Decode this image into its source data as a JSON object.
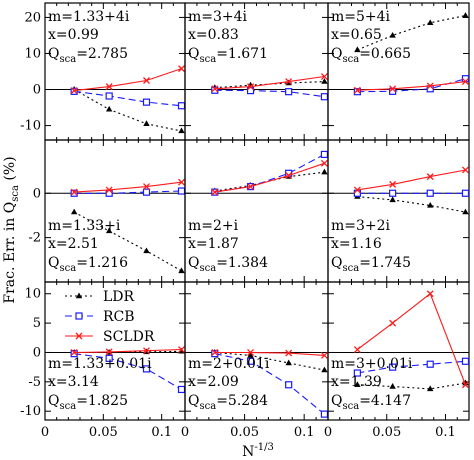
{
  "chart_data": {
    "type": "line",
    "ylabel": "Frac. Err. in Q",
    "ylabel_sub": "sca",
    "ylabel_unit": "(%)",
    "xlabel": "N",
    "xlabel_sup": "-1/3",
    "xlim": [
      0,
      0.12
    ],
    "x_ticks": [
      "0",
      "0.05",
      "0.1"
    ],
    "x_tick_values": [
      0,
      0.05,
      0.1
    ],
    "x": [
      0.025,
      0.055,
      0.087,
      0.117
    ],
    "legend": {
      "placement": "top-left of bottom-left panel",
      "entries": [
        {
          "label": "LDR",
          "color": "#000000",
          "dash": "2,3",
          "marker": "triangle"
        },
        {
          "label": "RCB",
          "color": "#1a1aff",
          "dash": "7,4",
          "marker": "square"
        },
        {
          "label": "SCLDR",
          "color": "#ff1a1a",
          "dash": "",
          "marker": "cross"
        }
      ]
    },
    "rows": [
      {
        "ylim": [
          -14,
          24
        ],
        "yticks": [
          -10,
          0,
          10,
          20
        ]
      },
      {
        "ylim": [
          -4,
          2.4
        ],
        "yticks": [
          -2,
          0
        ]
      },
      {
        "ylim": [
          -11.5,
          12
        ],
        "yticks": [
          -10,
          -5,
          0,
          5,
          10
        ]
      }
    ],
    "panels": [
      {
        "m": "m=1.33+4i",
        "x": "x=0.99",
        "q_prefix": "Q",
        "q_sub": "sca",
        "q_value": "=2.785",
        "series": {
          "LDR": [
            0,
            -5.5,
            -9.5,
            -11.5
          ],
          "RCB": [
            -0.5,
            -1.8,
            -3.5,
            -4.5
          ],
          "SCLDR": [
            -0.3,
            0.8,
            2.5,
            5.8
          ]
        }
      },
      {
        "m": "m=3+4i",
        "x": "x=0.83",
        "q_prefix": "Q",
        "q_sub": "sca",
        "q_value": "=1.671",
        "series": {
          "LDR": [
            0.5,
            1.2,
            1.8,
            2.2
          ],
          "RCB": [
            -0.2,
            -0.3,
            -0.6,
            -2.0
          ],
          "SCLDR": [
            0.2,
            0.8,
            2.2,
            3.6
          ]
        }
      },
      {
        "m": "m=5+4i",
        "x": "x=0.65",
        "q_prefix": "Q",
        "q_sub": "sca",
        "q_value": "=0.665",
        "series": {
          "LDR": [
            11,
            15,
            18.5,
            20.5
          ],
          "RCB": [
            -0.6,
            -0.5,
            0.2,
            3.0
          ],
          "SCLDR": [
            -0.2,
            0.2,
            1.0,
            2.2
          ]
        }
      },
      {
        "m": "m=1.33+i",
        "x": "x=2.51",
        "q_prefix": "Q",
        "q_sub": "sca",
        "q_value": "=1.216",
        "series": {
          "LDR": [
            -0.85,
            -1.7,
            -2.6,
            -3.5
          ],
          "RCB": [
            0,
            0,
            0.05,
            0.1
          ],
          "SCLDR": [
            0.05,
            0.15,
            0.3,
            0.5
          ]
        }
      },
      {
        "m": "m=2+i",
        "x": "x=1.87",
        "q_prefix": "Q",
        "q_sub": "sca",
        "q_value": "=1.384",
        "series": {
          "LDR": [
            0.1,
            0.35,
            0.75,
            0.95
          ],
          "RCB": [
            0.05,
            0.3,
            0.9,
            1.75
          ],
          "SCLDR": [
            0.05,
            0.3,
            0.8,
            1.35
          ]
        }
      },
      {
        "m": "m=3+2i",
        "x": "x=1.16",
        "q_prefix": "Q",
        "q_sub": "sca",
        "q_value": "=1.745",
        "series": {
          "LDR": [
            -0.15,
            -0.3,
            -0.55,
            -0.85
          ],
          "RCB": [
            0,
            0,
            0,
            0
          ],
          "SCLDR": [
            0.15,
            0.4,
            0.75,
            1.05
          ]
        }
      },
      {
        "m": "m=1.33+0.01i",
        "x": "x=3.14",
        "q_prefix": "Q",
        "q_sub": "sca",
        "q_value": "=1.825",
        "series": {
          "LDR": [
            0,
            0,
            0.1,
            0.2
          ],
          "RCB": [
            -0.2,
            -1.0,
            -2.8,
            -6.3
          ],
          "SCLDR": [
            0,
            0.1,
            0.3,
            0.5
          ]
        }
      },
      {
        "m": "m=2+0.01i",
        "x": "x=2.09",
        "q_prefix": "Q",
        "q_sub": "sca",
        "q_value": "=5.284",
        "series": {
          "LDR": [
            0,
            -0.5,
            -1.8,
            -3.0
          ],
          "RCB": [
            -0.2,
            -1.5,
            -5.5,
            -10.5
          ],
          "SCLDR": [
            0,
            0,
            -0.1,
            -0.5
          ]
        }
      },
      {
        "m": "m=3+0.01i",
        "x": "x=1.39",
        "q_prefix": "Q",
        "q_sub": "sca",
        "q_value": "=4.147",
        "series": {
          "LDR": [
            -5.5,
            -5.8,
            -6.2,
            -5.2
          ],
          "RCB": [
            -3.5,
            -2.5,
            -2.0,
            -1.5
          ],
          "SCLDR": [
            0.5,
            5.0,
            10.0,
            -5.5
          ]
        }
      }
    ]
  }
}
